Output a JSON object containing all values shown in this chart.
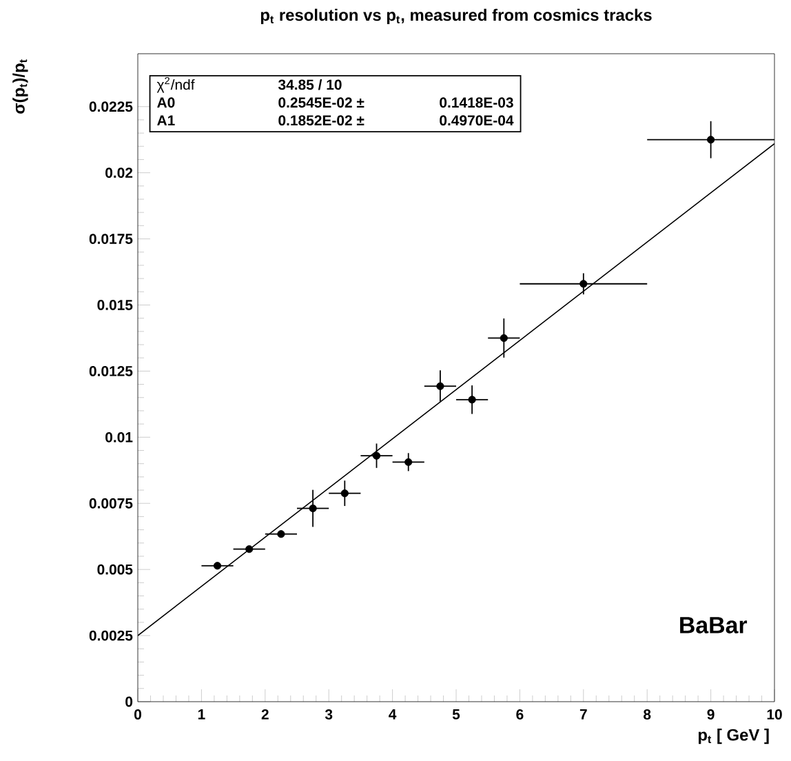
{
  "chart_data": {
    "type": "scatter",
    "title": "p$_{t}$ resolution vs p$_{t}$, measured from cosmics tracks",
    "xlabel": "p$_{t}$ [ GeV ]",
    "ylabel": "σ(p$_{t}$)/p$_{t}$",
    "xlim": [
      0,
      10
    ],
    "ylim": [
      0,
      0.0245
    ],
    "xticks": [
      0,
      1,
      2,
      3,
      4,
      5,
      6,
      7,
      8,
      9,
      10
    ],
    "yticks": [
      0,
      0.0025,
      0.005,
      0.0075,
      0.01,
      0.0125,
      0.015,
      0.0175,
      0.02,
      0.0225
    ],
    "grid": false,
    "series": [
      {
        "color": "#000000",
        "marker": "circle",
        "x": [
          1.25,
          1.75,
          2.25,
          2.75,
          3.25,
          3.75,
          4.25,
          4.75,
          5.25,
          5.75,
          7,
          9
        ],
        "values": [
          0.00514,
          0.00577,
          0.00634,
          0.00731,
          0.00788,
          0.0093,
          0.00906,
          0.01193,
          0.01142,
          0.01375,
          0.0158,
          0.02125
        ],
        "errors": [
          null,
          null,
          null,
          0.0007,
          0.00048,
          0.00046,
          0.00034,
          0.0006,
          0.00054,
          0.00074,
          0.0004,
          0.0007
        ],
        "xerrors": [
          0.25,
          0.25,
          0.25,
          0.25,
          0.25,
          0.25,
          0.25,
          0.25,
          0.25,
          0.25,
          1,
          1
        ]
      },
      {
        "type": "line",
        "color": "#000000",
        "marker": "none",
        "x": [
          0,
          10
        ],
        "values": [
          0.0025,
          0.0211
        ]
      }
    ],
    "annotations": [
      "χ$^{2}$/ndf",
      "34.85   /   10",
      "A0",
      "0.2545E-02 ±",
      "0.1418E-03",
      "A1",
      "0.1852E-02 ±",
      "0.4970E-04",
      "BaBar"
    ]
  }
}
